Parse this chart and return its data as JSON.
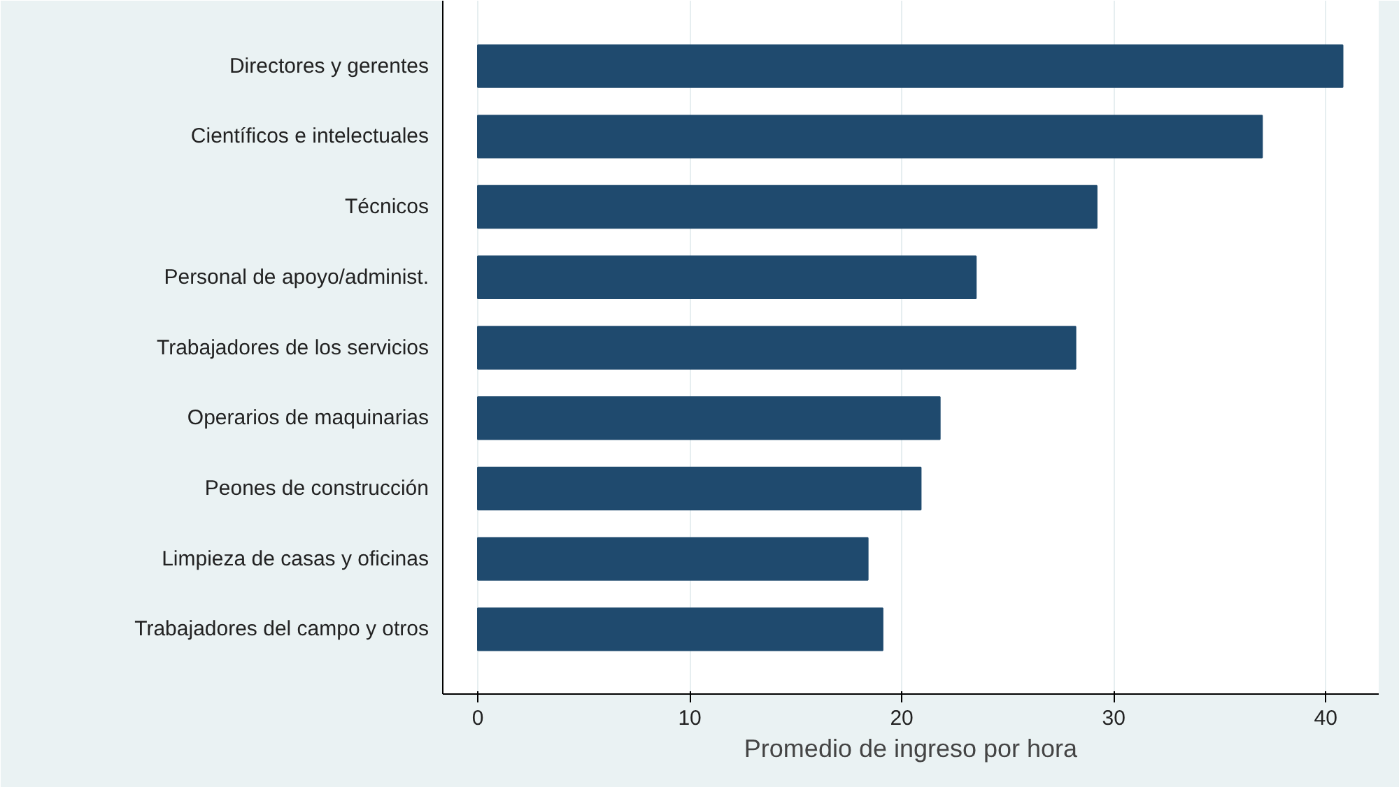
{
  "chart_data": {
    "type": "bar",
    "orientation": "horizontal",
    "xlabel": "Promedio de ingreso por hora",
    "categories": [
      "Directores y gerentes",
      "Científicos e intelectuales",
      "Técnicos",
      "Personal de apoyo/administ.",
      "Trabajadores de los servicios",
      "Operarios de maquinarias",
      "Peones de construcción",
      "Limpieza de casas y oficinas",
      "Trabajadores del campo y otros"
    ],
    "values": [
      40.8,
      37.0,
      29.2,
      23.5,
      28.2,
      21.8,
      20.9,
      18.4,
      19.1
    ],
    "color": "#1f4a6e",
    "xlim": [
      -1.65,
      42.5
    ],
    "xticks": [
      0,
      10,
      20,
      30,
      40
    ],
    "grid": "x"
  }
}
